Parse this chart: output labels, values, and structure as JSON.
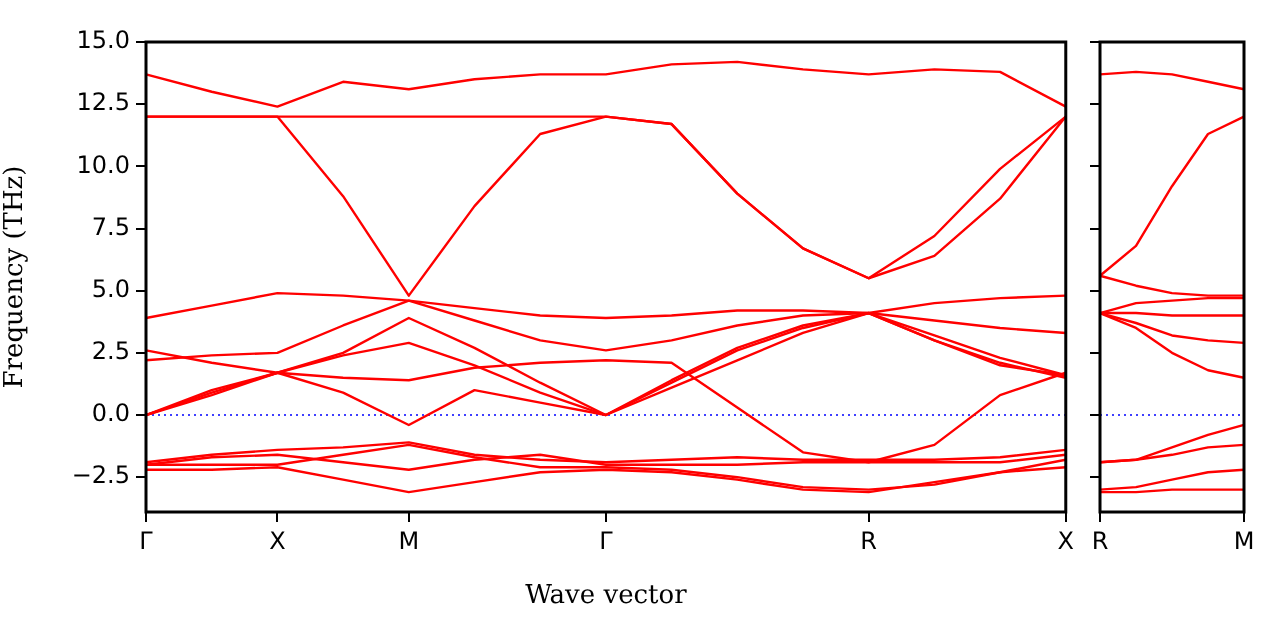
{
  "chart_data": [
    {
      "type": "line",
      "xlabel": "Wave vector",
      "ylabel": "Frequency (THz)",
      "categories": [
        "Γ",
        null,
        "X",
        null,
        "M",
        null,
        null,
        "Γ",
        null,
        null,
        null,
        "R",
        null,
        null,
        "X"
      ],
      "ylim": [
        -3.9,
        15
      ],
      "yticks": [
        {
          "value": -2.5,
          "label": "−2.5"
        },
        {
          "value": 0,
          "label": "0.0"
        },
        {
          "value": 2.5,
          "label": "2.5"
        },
        {
          "value": 5,
          "label": "5.0"
        },
        {
          "value": 7.5,
          "label": "7.5"
        },
        {
          "value": 10,
          "label": "10.0"
        },
        {
          "value": 12.5,
          "label": "12.5"
        },
        {
          "value": 15,
          "label": "15.0"
        }
      ],
      "ref_lines": [
        {
          "axis": "y",
          "value": 0,
          "color": "#0000ff",
          "line_style": "dotted"
        }
      ],
      "series": [
        {
          "color": "#ff0000",
          "values": [
            13.7,
            13.0,
            12.4,
            13.4,
            13.1,
            13.5,
            13.7,
            13.7,
            14.1,
            14.2,
            13.9,
            13.7,
            13.9,
            13.8,
            12.4
          ]
        },
        {
          "color": "#ff0000",
          "values": [
            12,
            12,
            12,
            12,
            12,
            12,
            12,
            12,
            11.7,
            8.9,
            6.7,
            5.5,
            7.2,
            9.9,
            12
          ]
        },
        {
          "color": "#ff0000",
          "values": [
            12,
            12,
            12,
            8.8,
            4.8,
            8.4,
            11.3,
            12,
            11.7,
            8.9,
            6.7,
            5.5,
            6.4,
            8.7,
            12
          ]
        },
        {
          "color": "#ff0000",
          "values": [
            3.9,
            4.4,
            4.9,
            4.8,
            4.6,
            4.3,
            4.0,
            3.9,
            4.0,
            4.2,
            4.2,
            4.1,
            4.5,
            4.7,
            4.8
          ]
        },
        {
          "color": "#ff0000",
          "values": [
            2.2,
            2.4,
            2.5,
            3.6,
            4.6,
            3.8,
            3.0,
            2.6,
            3.0,
            3.6,
            4.0,
            4.1,
            3.8,
            3.5,
            3.3
          ]
        },
        {
          "color": "#ff0000",
          "values": [
            2.6,
            2.1,
            1.7,
            2.5,
            3.9,
            2.7,
            1.3,
            0,
            1.3,
            2.6,
            3.5,
            4.1,
            3.2,
            2.3,
            1.6
          ]
        },
        {
          "color": "#ff0000",
          "values": [
            0,
            1.0,
            1.7,
            2.4,
            2.9,
            2.0,
            0.9,
            0,
            1.4,
            2.7,
            3.6,
            4.1,
            3.0,
            2.1,
            1.5
          ]
        },
        {
          "color": "#ff0000",
          "values": [
            0,
            0.8,
            1.7,
            0.9,
            -0.4,
            1.0,
            0.5,
            0,
            1.1,
            2.2,
            3.3,
            4.1,
            3.0,
            2.0,
            1.6
          ]
        },
        {
          "color": "#ff0000",
          "values": [
            0,
            0.9,
            1.7,
            1.5,
            1.4,
            1.9,
            2.1,
            2.2,
            2.1,
            0.3,
            -1.5,
            -1.9,
            -1.2,
            0.8,
            1.7
          ]
        },
        {
          "color": "#ff0000",
          "values": [
            -1.9,
            -1.6,
            -1.4,
            -1.3,
            -1.1,
            -1.6,
            -1.8,
            -1.9,
            -1.8,
            -1.7,
            -1.8,
            -1.8,
            -1.8,
            -1.7,
            -1.4
          ]
        },
        {
          "color": "#ff0000",
          "values": [
            -2.0,
            -1.7,
            -1.6,
            -1.9,
            -2.2,
            -1.8,
            -1.6,
            -2.0,
            -2.0,
            -2.0,
            -1.9,
            -1.9,
            -1.9,
            -1.9,
            -1.6
          ]
        },
        {
          "color": "#ff0000",
          "values": [
            -2.0,
            -2.0,
            -2.0,
            -1.6,
            -1.2,
            -1.7,
            -2.1,
            -2.1,
            -2.2,
            -2.5,
            -2.9,
            -3.0,
            -2.8,
            -2.3,
            -1.8
          ]
        },
        {
          "color": "#ff0000",
          "values": [
            -2.2,
            -2.2,
            -2.1,
            -2.6,
            -3.1,
            -2.7,
            -2.3,
            -2.2,
            -2.3,
            -2.6,
            -3.0,
            -3.1,
            -2.7,
            -2.3,
            -2.1
          ]
        }
      ]
    },
    {
      "type": "line",
      "tick_labels": "x",
      "categories": [
        "R",
        null,
        null,
        null,
        "M"
      ],
      "ylim": [
        -3.9,
        15
      ],
      "yticks": [
        -2.5,
        0,
        2.5,
        5,
        7.5,
        10,
        12.5,
        15
      ],
      "ref_lines": [
        {
          "axis": "y",
          "value": 0,
          "color": "#0000ff",
          "line_style": "dotted"
        }
      ],
      "series": [
        {
          "color": "#ff0000",
          "values": [
            13.7,
            13.8,
            13.7,
            13.4,
            13.1
          ]
        },
        {
          "color": "#ff0000",
          "values": [
            5.6,
            6.8,
            9.2,
            11.3,
            12.0
          ]
        },
        {
          "color": "#ff0000",
          "values": [
            5.6,
            5.2,
            4.9,
            4.8,
            4.8
          ]
        },
        {
          "color": "#ff0000",
          "values": [
            4.1,
            4.5,
            4.6,
            4.7,
            4.7
          ]
        },
        {
          "color": "#ff0000",
          "values": [
            4.1,
            4.1,
            4.0,
            4.0,
            4.0
          ]
        },
        {
          "color": "#ff0000",
          "values": [
            4.1,
            3.7,
            3.2,
            3.0,
            2.9
          ]
        },
        {
          "color": "#ff0000",
          "values": [
            4.1,
            3.5,
            2.5,
            1.8,
            1.5
          ]
        },
        {
          "color": "#ff0000",
          "values": [
            -1.9,
            -1.8,
            -1.3,
            -0.8,
            -0.4
          ]
        },
        {
          "color": "#ff0000",
          "values": [
            -1.9,
            -1.8,
            -1.6,
            -1.3,
            -1.2
          ]
        },
        {
          "color": "#ff0000",
          "values": [
            -3.0,
            -2.9,
            -2.6,
            -2.3,
            -2.2
          ]
        },
        {
          "color": "#ff0000",
          "values": [
            -3.1,
            -3.1,
            -3.0,
            -3.0,
            -3.0
          ]
        }
      ]
    }
  ]
}
